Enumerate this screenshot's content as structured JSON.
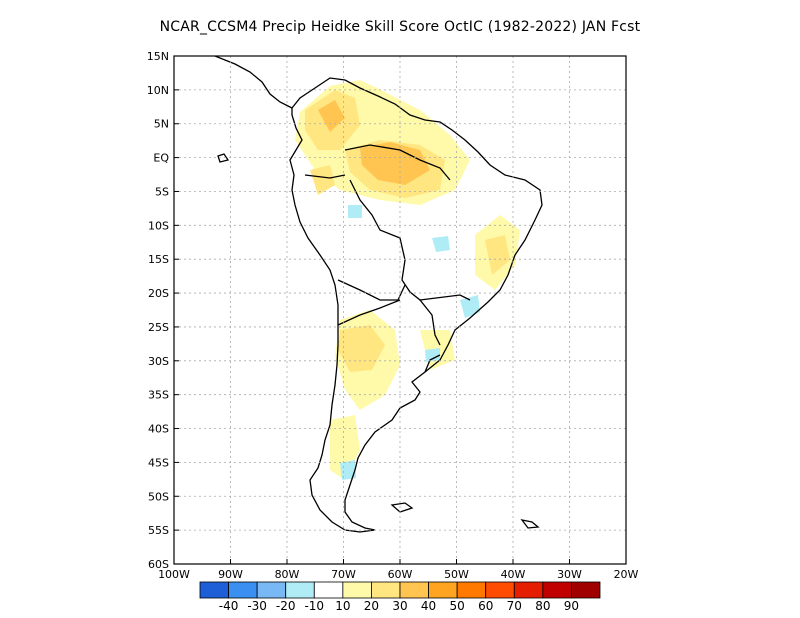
{
  "title": "NCAR_CCSM4 Precip Heidke Skill Score OctIC (1982-2022) JAN Fcst",
  "lat_ticks": [
    "15N",
    "10N",
    "5N",
    "EQ",
    "5S",
    "10S",
    "15S",
    "20S",
    "25S",
    "30S",
    "35S",
    "40S",
    "45S",
    "50S",
    "55S",
    "60S"
  ],
  "lon_ticks": [
    "100W",
    "90W",
    "80W",
    "70W",
    "60W",
    "50W",
    "40W",
    "30W",
    "20W"
  ],
  "colorbar": {
    "colors": [
      "#1e5fd8",
      "#3a8ff0",
      "#78b8f5",
      "#b0ecf5",
      "#ffffff",
      "#fffaaa",
      "#ffe680",
      "#ffc550",
      "#ffa420",
      "#ff7800",
      "#ff4c00",
      "#e61e00",
      "#c00000",
      "#a00000"
    ],
    "labels": [
      "-40",
      "-30",
      "-20",
      "-10",
      "10",
      "20",
      "30",
      "40",
      "50",
      "60",
      "70",
      "80",
      "90"
    ]
  }
}
